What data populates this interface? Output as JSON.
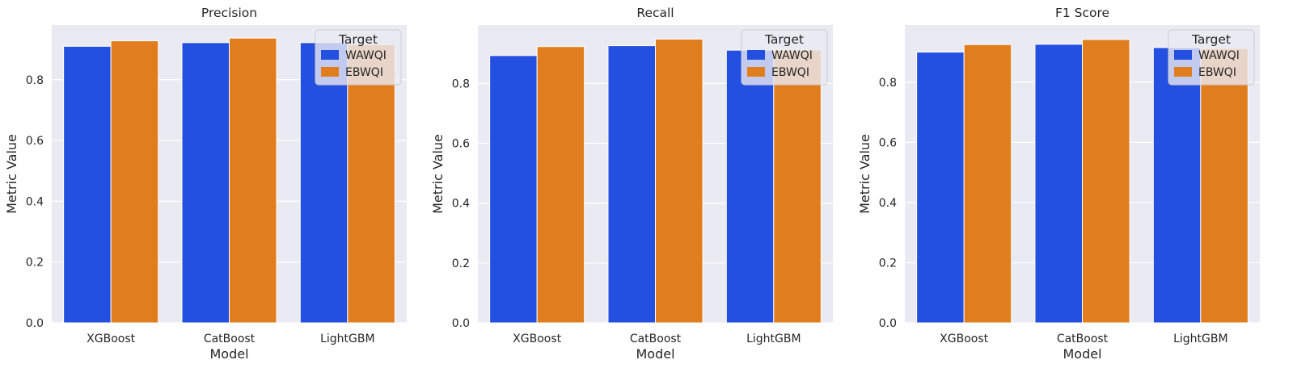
{
  "chart_data": [
    {
      "type": "bar",
      "title": "Precision",
      "xlabel": "Model",
      "ylabel": "Metric Value",
      "categories": [
        "XGBoost",
        "CatBoost",
        "LightGBM"
      ],
      "series": [
        {
          "name": "WAWQI",
          "values": [
            0.91,
            0.922,
            0.922
          ]
        },
        {
          "name": "EBWQI",
          "values": [
            0.928,
            0.937,
            0.915
          ]
        }
      ],
      "ylim": [
        0,
        0.98
      ],
      "yticks": [
        "0.0",
        "0.2",
        "0.4",
        "0.6",
        "0.8"
      ],
      "legend": {
        "title": "Target",
        "placement": "upper right"
      },
      "grid": true
    },
    {
      "type": "bar",
      "title": "Recall",
      "xlabel": "Model",
      "ylabel": "Metric Value",
      "categories": [
        "XGBoost",
        "CatBoost",
        "LightGBM"
      ],
      "series": [
        {
          "name": "WAWQI",
          "values": [
            0.893,
            0.926,
            0.911
          ]
        },
        {
          "name": "EBWQI",
          "values": [
            0.923,
            0.948,
            0.912
          ]
        }
      ],
      "ylim": [
        0,
        0.995
      ],
      "yticks": [
        "0.0",
        "0.2",
        "0.4",
        "0.6",
        "0.8"
      ],
      "legend": {
        "title": "Target",
        "placement": "upper right"
      },
      "grid": true
    },
    {
      "type": "bar",
      "title": "F1 Score",
      "xlabel": "Model",
      "ylabel": "Metric Value",
      "categories": [
        "XGBoost",
        "CatBoost",
        "LightGBM"
      ],
      "series": [
        {
          "name": "WAWQI",
          "values": [
            0.9,
            0.926,
            0.915
          ]
        },
        {
          "name": "EBWQI",
          "values": [
            0.925,
            0.942,
            0.912
          ]
        }
      ],
      "ylim": [
        0,
        0.99
      ],
      "yticks": [
        "0.0",
        "0.2",
        "0.4",
        "0.6",
        "0.8"
      ],
      "legend": {
        "title": "Target",
        "placement": "upper right"
      },
      "grid": true
    }
  ],
  "colors": {
    "WAWQI": "#2350e0",
    "EBWQI": "#e07e1f",
    "plot_background": "#eaeaf2",
    "grid": "#ffffff"
  }
}
